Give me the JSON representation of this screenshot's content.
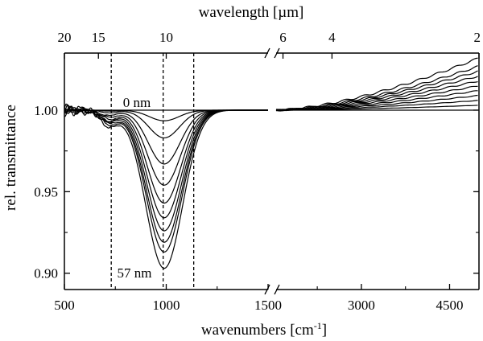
{
  "chart_data": {
    "type": "line",
    "title": "",
    "xlabel_bottom": "wavenumbers [cm",
    "xlabel_bottom_sup": "-1",
    "xlabel_bottom_end": "]",
    "xlabel_top": "wavelength [µm]",
    "ylabel": "rel. transmittance",
    "broken_axis": true,
    "segments": [
      {
        "xlim": [
          500,
          1500
        ]
      },
      {
        "xlim": [
          1550,
          5000
        ]
      }
    ],
    "ylim": [
      0.89,
      1.035
    ],
    "bottom_ticks": [
      {
        "value": 500,
        "label": "500"
      },
      {
        "value": 1000,
        "label": "1000"
      },
      {
        "value": 1500,
        "label": "1500"
      },
      {
        "value": 3000,
        "label": "3000"
      },
      {
        "value": 4500,
        "label": "4500"
      }
    ],
    "top_ticks": [
      {
        "value": 500,
        "label": "20"
      },
      {
        "value": 667,
        "label": "15"
      },
      {
        "value": 1000,
        "label": "10"
      },
      {
        "value": 1667,
        "label": "6"
      },
      {
        "value": 2500,
        "label": "4"
      },
      {
        "value": 5000,
        "label": "2"
      }
    ],
    "y_ticks": [
      {
        "value": 1.0,
        "label": "1.00"
      },
      {
        "value": 0.95,
        "label": "0.95"
      },
      {
        "value": 0.9,
        "label": "0.90"
      }
    ],
    "vlines": [
      730,
      985,
      1135
    ],
    "thickness_series": [
      {
        "name": "0 nm",
        "dip": 0.0,
        "rise": 0.0
      },
      {
        "name": "",
        "dip": 0.0065,
        "rise": 0.003
      },
      {
        "name": "",
        "dip": 0.017,
        "rise": 0.006
      },
      {
        "name": "",
        "dip": 0.033,
        "rise": 0.009
      },
      {
        "name": "",
        "dip": 0.046,
        "rise": 0.012
      },
      {
        "name": "",
        "dip": 0.057,
        "rise": 0.015
      },
      {
        "name": "",
        "dip": 0.066,
        "rise": 0.018
      },
      {
        "name": "",
        "dip": 0.074,
        "rise": 0.021
      },
      {
        "name": "",
        "dip": 0.081,
        "rise": 0.024
      },
      {
        "name": "",
        "dip": 0.087,
        "rise": 0.027
      },
      {
        "name": "57 nm",
        "dip": 0.097,
        "rise": 0.032
      }
    ],
    "dip_center": 990,
    "annotations": [
      {
        "text": "0 nm"
      },
      {
        "text": "57 nm"
      }
    ]
  }
}
